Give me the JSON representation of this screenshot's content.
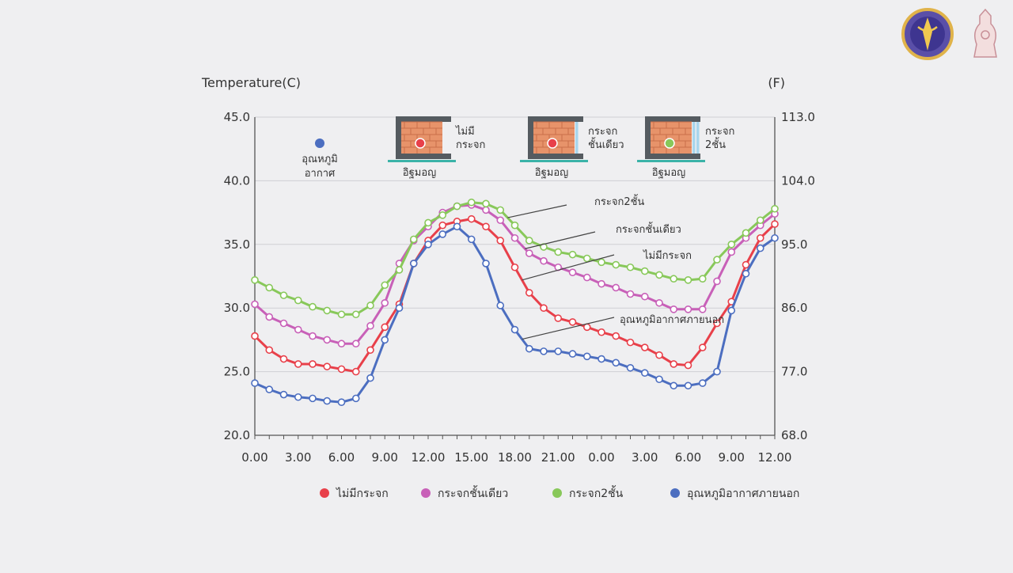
{
  "chart_data": {
    "type": "line",
    "ylabel_left": "Temperature(C)",
    "ylabel_right": "(F)",
    "ylim": [
      20,
      45
    ],
    "yticks_left": [
      "20.0",
      "25.0",
      "30.0",
      "35.0",
      "40.0",
      "45.0"
    ],
    "yticks_right": [
      "68.0",
      "77.0",
      "86.0",
      "95.0",
      "104.0",
      "113.0"
    ],
    "x_tick_labels": [
      "0.00",
      "3.00",
      "6.00",
      "9.00",
      "12.00",
      "15.00",
      "18.00",
      "21.00",
      "0.00",
      "3.00",
      "6.00",
      "9.00",
      "12.00"
    ],
    "x": [
      0,
      1,
      2,
      3,
      4,
      5,
      6,
      7,
      8,
      9,
      10,
      11,
      12,
      13,
      14,
      15,
      16,
      17,
      18,
      19,
      20,
      21,
      22,
      23,
      24,
      25,
      26,
      27,
      28,
      29,
      30,
      31,
      32,
      33,
      34,
      35,
      36
    ],
    "grid": true,
    "legend_position": "bottom",
    "series": [
      {
        "name": "ไม่มีกระจก",
        "color": "#e8404a",
        "values": [
          27.8,
          26.7,
          26.0,
          25.6,
          25.6,
          25.4,
          25.2,
          25.0,
          26.7,
          28.5,
          30.3,
          33.5,
          35.3,
          36.5,
          36.8,
          37.0,
          36.4,
          35.3,
          33.2,
          31.2,
          30.0,
          29.2,
          28.9,
          28.5,
          28.1,
          27.8,
          27.3,
          26.9,
          26.3,
          25.6,
          25.5,
          26.9,
          28.8,
          30.5,
          33.4,
          35.5,
          36.6
        ]
      },
      {
        "name": "กระจกชั้นเดียว",
        "color": "#c860b8",
        "values": [
          30.3,
          29.3,
          28.8,
          28.3,
          27.8,
          27.5,
          27.2,
          27.2,
          28.6,
          30.4,
          33.5,
          35.3,
          36.4,
          37.5,
          38.0,
          38.1,
          37.7,
          36.9,
          35.5,
          34.3,
          33.7,
          33.2,
          32.8,
          32.4,
          31.9,
          31.6,
          31.1,
          30.9,
          30.4,
          29.9,
          29.9,
          29.9,
          32.1,
          34.4,
          35.5,
          36.5,
          37.4
        ]
      },
      {
        "name": "กระจก2ชั้น",
        "color": "#88c85a",
        "values": [
          32.2,
          31.6,
          31.0,
          30.6,
          30.1,
          29.8,
          29.5,
          29.5,
          30.2,
          31.8,
          33.0,
          35.4,
          36.7,
          37.3,
          38.0,
          38.3,
          38.2,
          37.7,
          36.5,
          35.3,
          34.8,
          34.4,
          34.2,
          33.9,
          33.6,
          33.4,
          33.2,
          32.9,
          32.6,
          32.3,
          32.2,
          32.3,
          33.8,
          35.0,
          35.9,
          36.9,
          37.8
        ]
      },
      {
        "name": "อุณหภูมิอากาศภายนอก",
        "color": "#4c6ec0",
        "values": [
          24.1,
          23.6,
          23.2,
          23.0,
          22.9,
          22.7,
          22.6,
          22.9,
          24.5,
          27.5,
          30.0,
          33.5,
          35.0,
          35.8,
          36.4,
          35.4,
          33.5,
          30.2,
          28.3,
          26.8,
          26.6,
          26.6,
          26.4,
          26.2,
          26.0,
          25.7,
          25.3,
          24.9,
          24.4,
          23.9,
          23.9,
          24.1,
          25.0,
          29.8,
          32.7,
          34.7,
          35.5
        ]
      }
    ],
    "line_annotations": [
      {
        "text": "กระจก2ชั้น",
        "series_index": 2,
        "x": 17.5
      },
      {
        "text": "กระจกชั้นเดียว",
        "series_index": 1,
        "x": 18.7
      },
      {
        "text": "ไม่มีกระจก",
        "series_index": 0,
        "x": 18.5
      },
      {
        "text": "อุณหภูมิอากาศภายนอก",
        "series_index": 3,
        "x": 18.5
      }
    ],
    "wall_diagrams": [
      {
        "text_lines": [
          "ไม่มี",
          "กระจก"
        ],
        "label": "อิฐมอญ",
        "dot_color": "#e8404a",
        "glass": 0
      },
      {
        "text_lines": [
          "กระจก",
          "ชั้นเดียว"
        ],
        "label": "อิฐมอญ",
        "dot_color": "#e8404a",
        "glass": 1
      },
      {
        "text_lines": [
          "กระจก",
          "2ชั้น"
        ],
        "label": "อิฐมอญ",
        "dot_color": "#88c85a",
        "glass": 2
      }
    ],
    "outdoor_marker": {
      "text_lines": [
        "อุณหภูมิ",
        "อากาศ"
      ],
      "dot_color": "#4c6ec0"
    }
  }
}
